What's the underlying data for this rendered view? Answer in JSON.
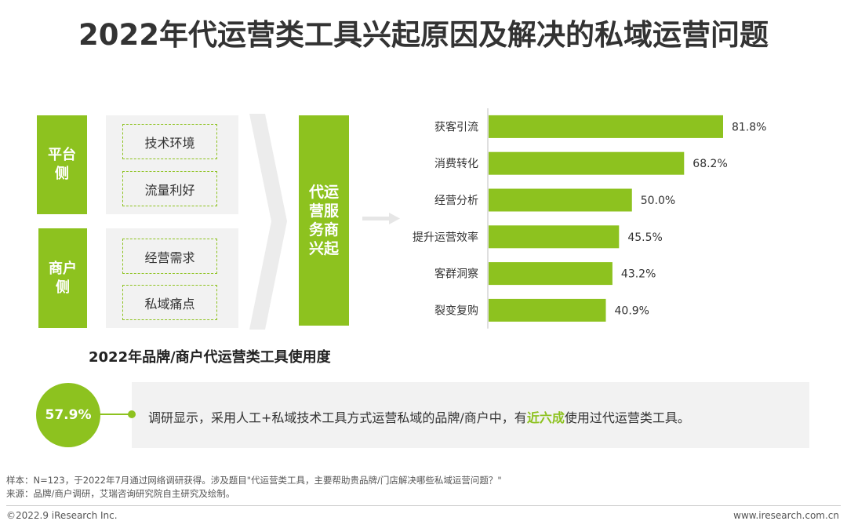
{
  "title": "2022年代运营类工具兴起原因及解决的私域运营问题",
  "diagram": {
    "platform_side": {
      "label": "平台\n侧",
      "factors": [
        "技术环境",
        "流量利好"
      ]
    },
    "merchant_side": {
      "label": "商户\n侧",
      "factors": [
        "经营需求",
        "私域痛点"
      ]
    },
    "center_label": "代运\n营服\n务商\n兴起"
  },
  "chart_data": {
    "type": "bar",
    "orientation": "horizontal",
    "categories": [
      "获客引流",
      "消费转化",
      "经营分析",
      "提升运营效率",
      "客群洞察",
      "裂变复购"
    ],
    "values": [
      81.8,
      68.2,
      50.0,
      45.5,
      43.2,
      40.9
    ],
    "value_labels": [
      "81.8%",
      "68.2%",
      "50.0%",
      "45.5%",
      "43.2%",
      "40.9%"
    ],
    "xlim": [
      0,
      100
    ],
    "bar_color": "#8dc21f",
    "grid": false
  },
  "usage": {
    "title": "2022年品牌/商户代运营类工具使用度",
    "stat_value": "57.9%",
    "text_before": "调研显示，采用人工+私域技术工具方式运营私域的品牌/商户中，有",
    "text_highlight": "近六成",
    "text_after": "使用过代运营类工具。"
  },
  "notes": {
    "sample": "样本：N=123，于2022年7月通过网络调研获得。涉及题目\"代运营类工具，主要帮助贵品牌/门店解决哪些私域运营问题？\"",
    "source": "来源：品牌/商户调研，艾瑞咨询研究院自主研究及绘制。"
  },
  "footer": {
    "copyright": "©2022.9 iResearch Inc.",
    "website": "www.iresearch.com.cn"
  },
  "colors": {
    "accent": "#8dc21f",
    "panel": "#f2f2f2",
    "arrow": "#e9e9e9"
  }
}
